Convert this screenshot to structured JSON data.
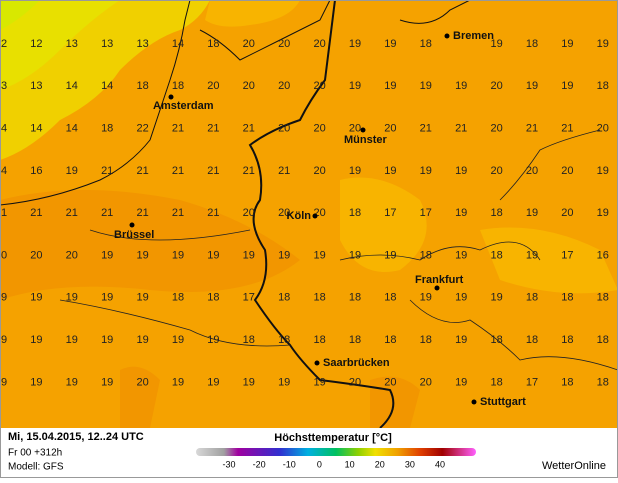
{
  "map": {
    "grid": {
      "rows": [
        [
          "2",
          "12",
          "13",
          "13",
          "13",
          "14",
          "18",
          "20",
          "20",
          "20",
          "19",
          "19",
          "18",
          null,
          "19",
          "18",
          "19",
          "19"
        ],
        [
          "3",
          "13",
          "14",
          "14",
          "18",
          "18",
          "20",
          "20",
          "20",
          "20",
          "19",
          "19",
          "19",
          "19",
          "20",
          "19",
          "19",
          "18"
        ],
        [
          "4",
          "14",
          "14",
          "18",
          "22",
          "21",
          "21",
          "21",
          "20",
          "20",
          "20",
          "20",
          "21",
          "21",
          "20",
          "21",
          "21",
          "20"
        ],
        [
          "4",
          "16",
          "19",
          "21",
          "21",
          "21",
          "21",
          "21",
          "21",
          "20",
          "19",
          "19",
          "19",
          "19",
          "20",
          "20",
          "20",
          "19"
        ],
        [
          "1",
          "21",
          "21",
          "21",
          "21",
          "21",
          "21",
          "20",
          "20",
          "20",
          "18",
          "17",
          "17",
          "19",
          "18",
          "19",
          "20",
          "19"
        ],
        [
          "0",
          "20",
          "20",
          "19",
          "19",
          "19",
          "19",
          "19",
          "19",
          "19",
          "19",
          "19",
          "18",
          "19",
          "18",
          "19",
          "17",
          "16"
        ],
        [
          "9",
          "19",
          "19",
          "19",
          "19",
          "18",
          "18",
          "17",
          "18",
          "18",
          "18",
          "18",
          "19",
          "19",
          "19",
          "18",
          "18",
          "18"
        ],
        [
          "9",
          "19",
          "19",
          "19",
          "19",
          "19",
          "19",
          "18",
          "18",
          "18",
          "18",
          "18",
          "18",
          "19",
          "18",
          "18",
          "18",
          "18"
        ],
        [
          "9",
          "19",
          "19",
          "19",
          "20",
          "19",
          "19",
          "19",
          "19",
          "19",
          "20",
          "20",
          "20",
          "19",
          "18",
          "17",
          "18",
          "18"
        ]
      ]
    },
    "cities": [
      "Bremen",
      "Amsterdam",
      "Münster",
      "Köln",
      "Brüssel",
      "Frankfurt",
      "Saarbrücken",
      "Stuttgart"
    ]
  },
  "footer": {
    "date": "Mi, 15.04.2015, 12..24 UTC",
    "run": "Fr 00 +312h",
    "model": "Modell: GFS",
    "title": "Höchsttemperatur [°C]",
    "colorbar_ticks": [
      -30,
      -20,
      -10,
      0,
      10,
      20,
      30,
      40
    ],
    "brand": "WetterOnline"
  }
}
